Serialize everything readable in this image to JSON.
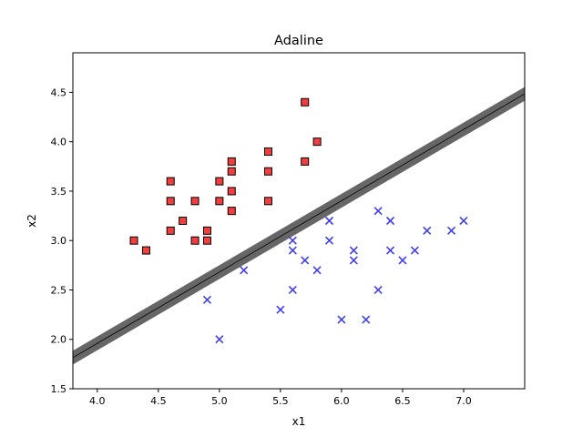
{
  "chart_data": {
    "type": "scatter",
    "title": "Adaline",
    "xlabel": "x1",
    "ylabel": "x2",
    "xlim": [
      3.8,
      7.5
    ],
    "ylim": [
      1.5,
      4.9
    ],
    "xticks": [
      4.0,
      4.5,
      5.0,
      5.5,
      6.0,
      6.5,
      7.0
    ],
    "xtick_labels": [
      "4.0",
      "4.5",
      "5.0",
      "5.5",
      "6.0",
      "6.5",
      "7.0"
    ],
    "yticks": [
      1.5,
      2.0,
      2.5,
      3.0,
      3.5,
      4.0,
      4.5
    ],
    "ytick_labels": [
      "1.5",
      "2.0",
      "2.5",
      "3.0",
      "3.5",
      "4.0",
      "4.5"
    ],
    "grid": false,
    "decision_boundary": {
      "x": [
        3.8,
        7.5
      ],
      "y": [
        1.815,
        4.485
      ],
      "band_half_width": 0.07,
      "band_color": "#555555",
      "line_color": "#000000"
    },
    "series": [
      {
        "marker": "square",
        "color": "#ee1c1c",
        "points": [
          [
            4.3,
            3.0
          ],
          [
            4.4,
            2.9
          ],
          [
            4.6,
            3.1
          ],
          [
            4.6,
            3.4
          ],
          [
            4.6,
            3.6
          ],
          [
            4.7,
            3.2
          ],
          [
            4.8,
            3.0
          ],
          [
            4.8,
            3.4
          ],
          [
            4.9,
            3.0
          ],
          [
            4.9,
            3.1
          ],
          [
            5.0,
            3.4
          ],
          [
            5.0,
            3.6
          ],
          [
            5.1,
            3.3
          ],
          [
            5.1,
            3.5
          ],
          [
            5.1,
            3.7
          ],
          [
            5.1,
            3.8
          ],
          [
            5.4,
            3.4
          ],
          [
            5.4,
            3.7
          ],
          [
            5.4,
            3.9
          ],
          [
            5.7,
            3.8
          ],
          [
            5.7,
            4.4
          ],
          [
            5.8,
            4.0
          ]
        ]
      },
      {
        "marker": "x",
        "color": "#2a2aee",
        "points": [
          [
            4.9,
            2.4
          ],
          [
            5.0,
            2.0
          ],
          [
            5.2,
            2.7
          ],
          [
            5.5,
            2.3
          ],
          [
            5.6,
            2.5
          ],
          [
            5.6,
            2.9
          ],
          [
            5.6,
            3.0
          ],
          [
            5.7,
            2.8
          ],
          [
            5.8,
            2.7
          ],
          [
            5.9,
            3.0
          ],
          [
            5.9,
            3.2
          ],
          [
            6.0,
            2.2
          ],
          [
            6.1,
            2.8
          ],
          [
            6.1,
            2.9
          ],
          [
            6.2,
            2.2
          ],
          [
            6.3,
            2.5
          ],
          [
            6.3,
            3.3
          ],
          [
            6.4,
            2.9
          ],
          [
            6.4,
            3.2
          ],
          [
            6.5,
            2.8
          ],
          [
            6.6,
            2.9
          ],
          [
            6.7,
            3.1
          ],
          [
            6.9,
            3.1
          ],
          [
            7.0,
            3.2
          ]
        ]
      }
    ]
  }
}
